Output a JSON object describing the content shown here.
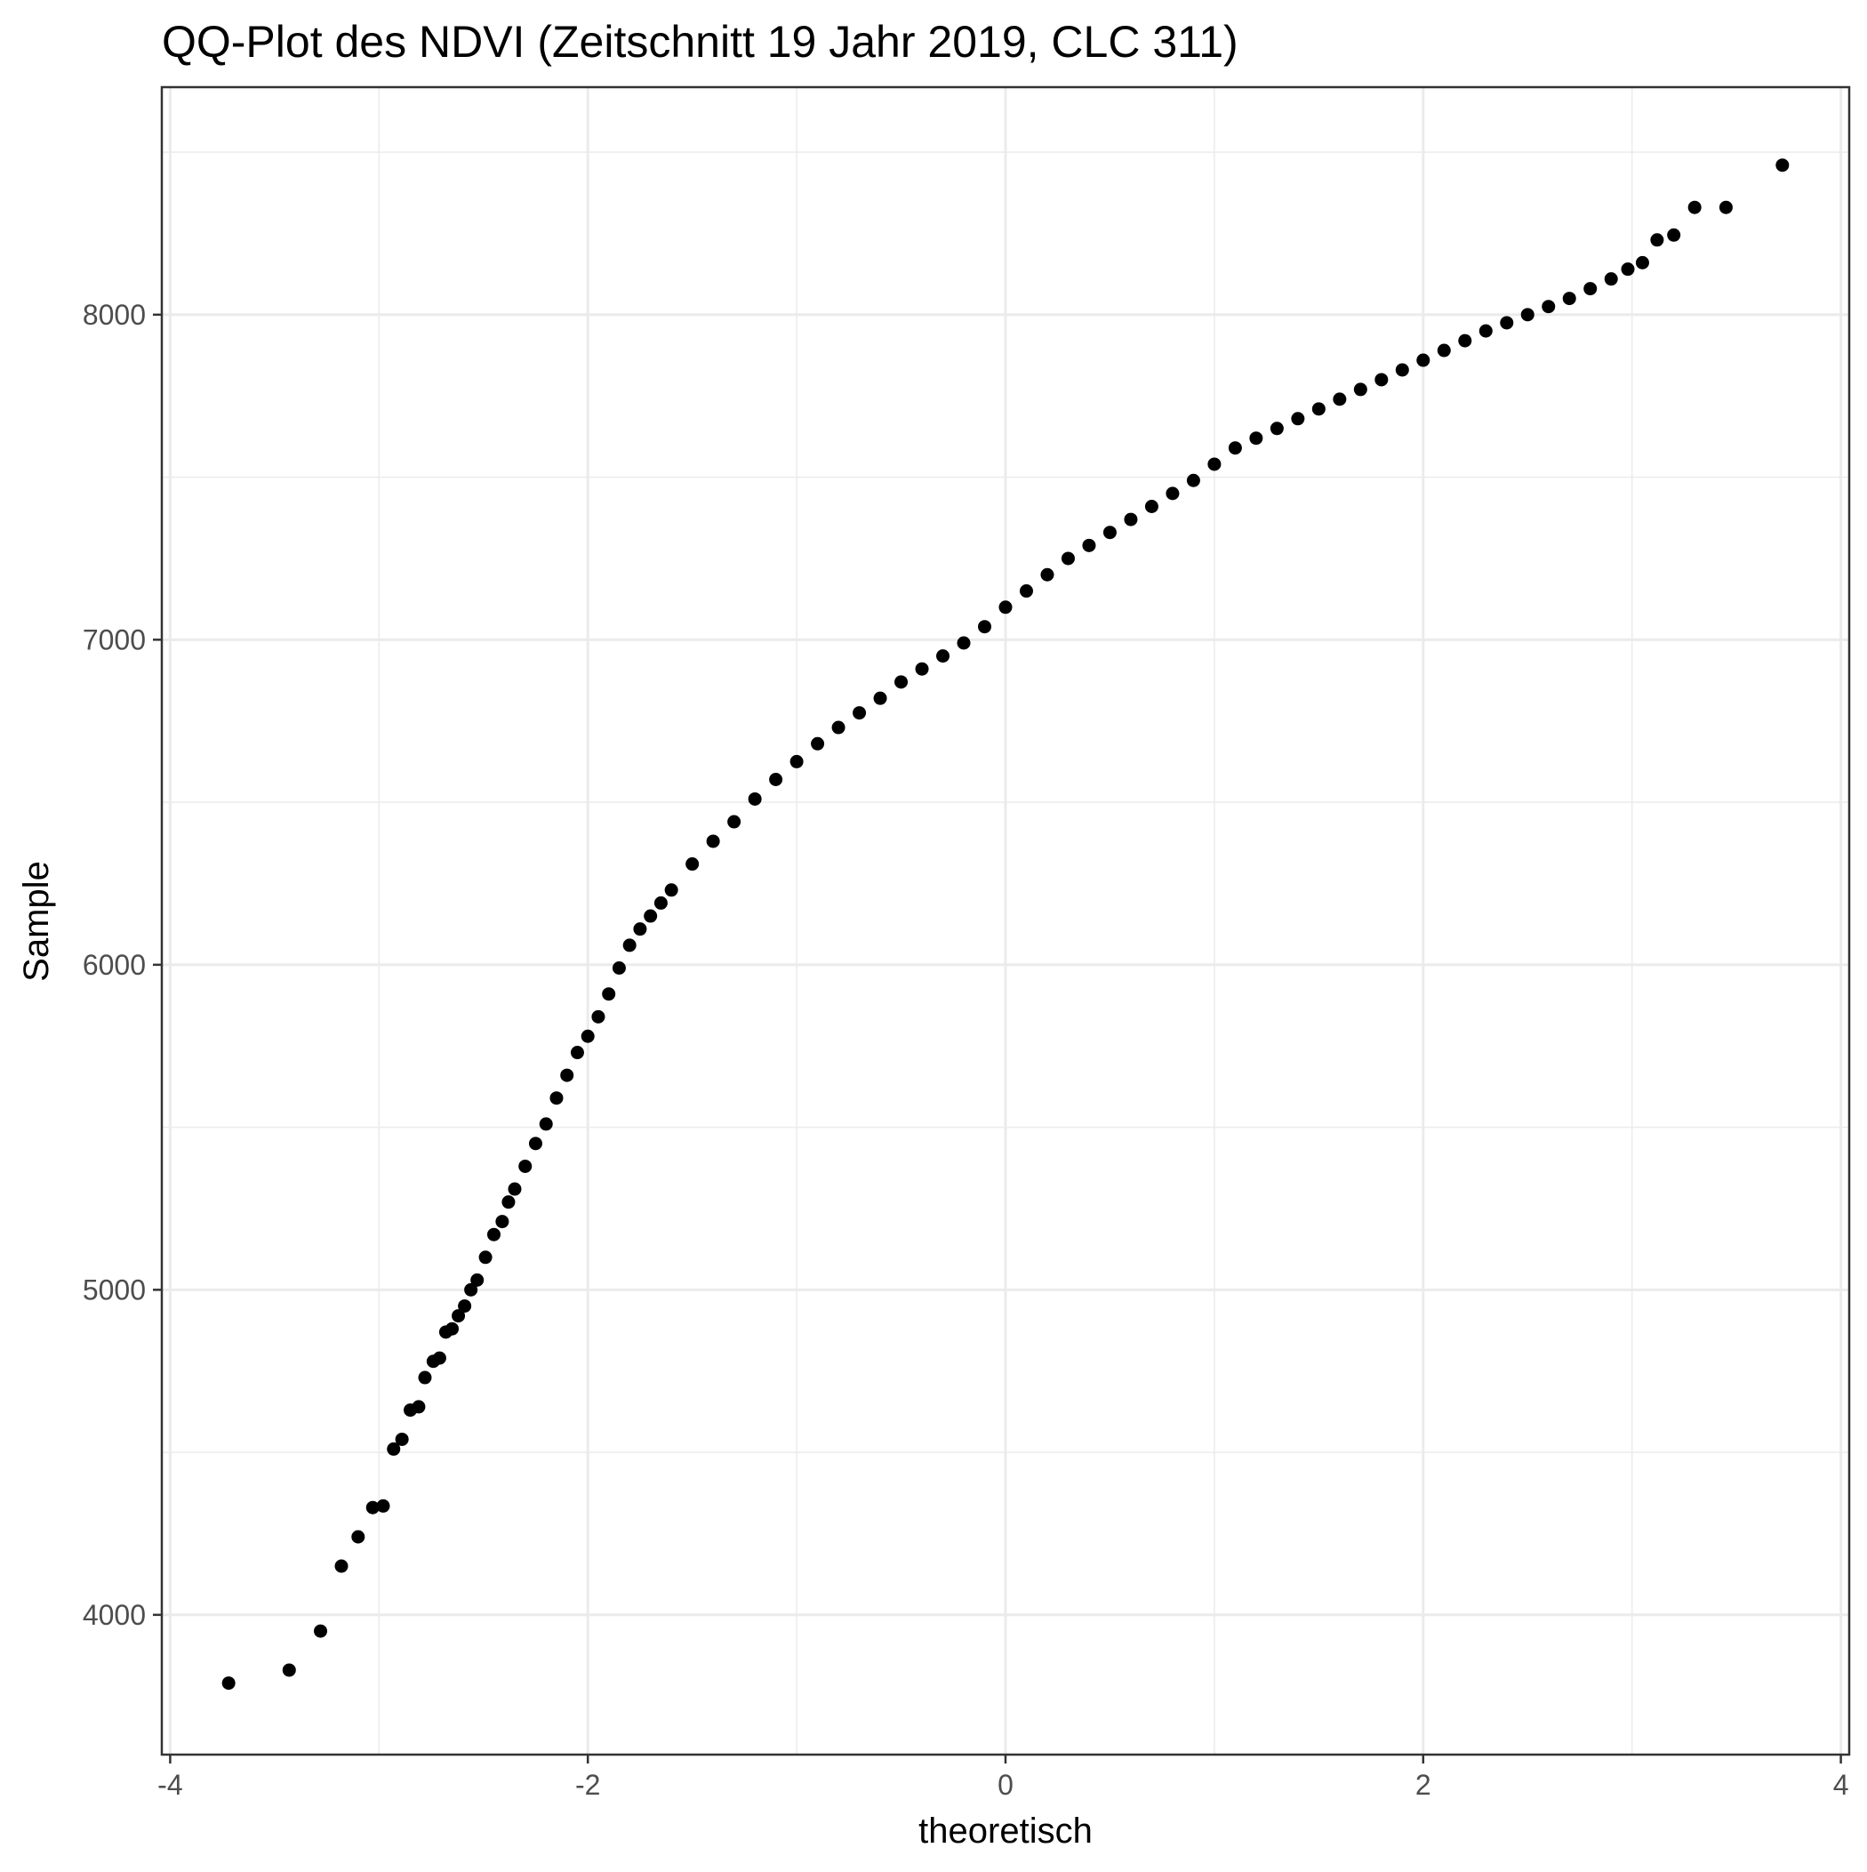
{
  "chart_data": {
    "type": "scatter",
    "title": "QQ-Plot des NDVI (Zeitschnitt 19 Jahr 2019, CLC 311)",
    "xlabel": "theoretisch",
    "ylabel": "Sample",
    "xlim": [
      -4.04,
      4.04
    ],
    "ylim": [
      3570,
      8700
    ],
    "x_ticks": [
      -4,
      -2,
      0,
      2,
      4
    ],
    "x_tick_labels": [
      "-4",
      "-2",
      "0",
      "2",
      "4"
    ],
    "y_ticks": [
      4000,
      5000,
      6000,
      7000,
      8000
    ],
    "y_tick_labels": [
      "4000",
      "5000",
      "6000",
      "7000",
      "8000"
    ],
    "x_minor_ticks": [
      -3,
      -1,
      1,
      3
    ],
    "y_minor_ticks": [
      4500,
      5500,
      6500,
      7500,
      8500
    ],
    "grid": true,
    "legend": "none",
    "point_color": "#000000",
    "series": [
      {
        "points": [
          [
            -3.72,
            3790
          ],
          [
            -3.43,
            3830
          ],
          [
            -3.28,
            3950
          ],
          [
            -3.18,
            4150
          ],
          [
            -3.1,
            4240
          ],
          [
            -3.03,
            4330
          ],
          [
            -2.98,
            4335
          ],
          [
            -2.93,
            4510
          ],
          [
            -2.89,
            4540
          ],
          [
            -2.85,
            4630
          ],
          [
            -2.81,
            4640
          ],
          [
            -2.78,
            4730
          ],
          [
            -2.74,
            4780
          ],
          [
            -2.71,
            4790
          ],
          [
            -2.68,
            4870
          ],
          [
            -2.65,
            4880
          ],
          [
            -2.62,
            4920
          ],
          [
            -2.59,
            4950
          ],
          [
            -2.56,
            5000
          ],
          [
            -2.53,
            5030
          ],
          [
            -2.49,
            5100
          ],
          [
            -2.45,
            5170
          ],
          [
            -2.41,
            5210
          ],
          [
            -2.38,
            5270
          ],
          [
            -2.35,
            5310
          ],
          [
            -2.3,
            5380
          ],
          [
            -2.25,
            5450
          ],
          [
            -2.2,
            5510
          ],
          [
            -2.15,
            5590
          ],
          [
            -2.1,
            5660
          ],
          [
            -2.05,
            5730
          ],
          [
            -2.0,
            5780
          ],
          [
            -1.95,
            5840
          ],
          [
            -1.9,
            5910
          ],
          [
            -1.85,
            5990
          ],
          [
            -1.8,
            6060
          ],
          [
            -1.75,
            6110
          ],
          [
            -1.7,
            6150
          ],
          [
            -1.65,
            6190
          ],
          [
            -1.6,
            6230
          ],
          [
            -1.5,
            6310
          ],
          [
            -1.4,
            6380
          ],
          [
            -1.3,
            6440
          ],
          [
            -1.2,
            6510
          ],
          [
            -1.1,
            6570
          ],
          [
            -1.0,
            6625
          ],
          [
            -0.9,
            6680
          ],
          [
            -0.8,
            6730
          ],
          [
            -0.7,
            6775
          ],
          [
            -0.6,
            6820
          ],
          [
            -0.5,
            6870
          ],
          [
            -0.4,
            6910
          ],
          [
            -0.3,
            6950
          ],
          [
            -0.2,
            6990
          ],
          [
            -0.1,
            7040
          ],
          [
            0.0,
            7100
          ],
          [
            0.1,
            7150
          ],
          [
            0.2,
            7200
          ],
          [
            0.3,
            7250
          ],
          [
            0.4,
            7290
          ],
          [
            0.5,
            7330
          ],
          [
            0.6,
            7370
          ],
          [
            0.7,
            7410
          ],
          [
            0.8,
            7450
          ],
          [
            0.9,
            7490
          ],
          [
            1.0,
            7540
          ],
          [
            1.1,
            7590
          ],
          [
            1.2,
            7620
          ],
          [
            1.3,
            7650
          ],
          [
            1.4,
            7680
          ],
          [
            1.5,
            7710
          ],
          [
            1.6,
            7740
          ],
          [
            1.7,
            7770
          ],
          [
            1.8,
            7800
          ],
          [
            1.9,
            7830
          ],
          [
            2.0,
            7860
          ],
          [
            2.1,
            7890
          ],
          [
            2.2,
            7920
          ],
          [
            2.3,
            7950
          ],
          [
            2.4,
            7975
          ],
          [
            2.5,
            8000
          ],
          [
            2.6,
            8025
          ],
          [
            2.7,
            8050
          ],
          [
            2.8,
            8080
          ],
          [
            2.9,
            8110
          ],
          [
            2.98,
            8140
          ],
          [
            3.05,
            8160
          ],
          [
            3.12,
            8230
          ],
          [
            3.2,
            8245
          ],
          [
            3.3,
            8330
          ],
          [
            3.45,
            8330
          ],
          [
            3.72,
            8460
          ]
        ]
      }
    ]
  }
}
